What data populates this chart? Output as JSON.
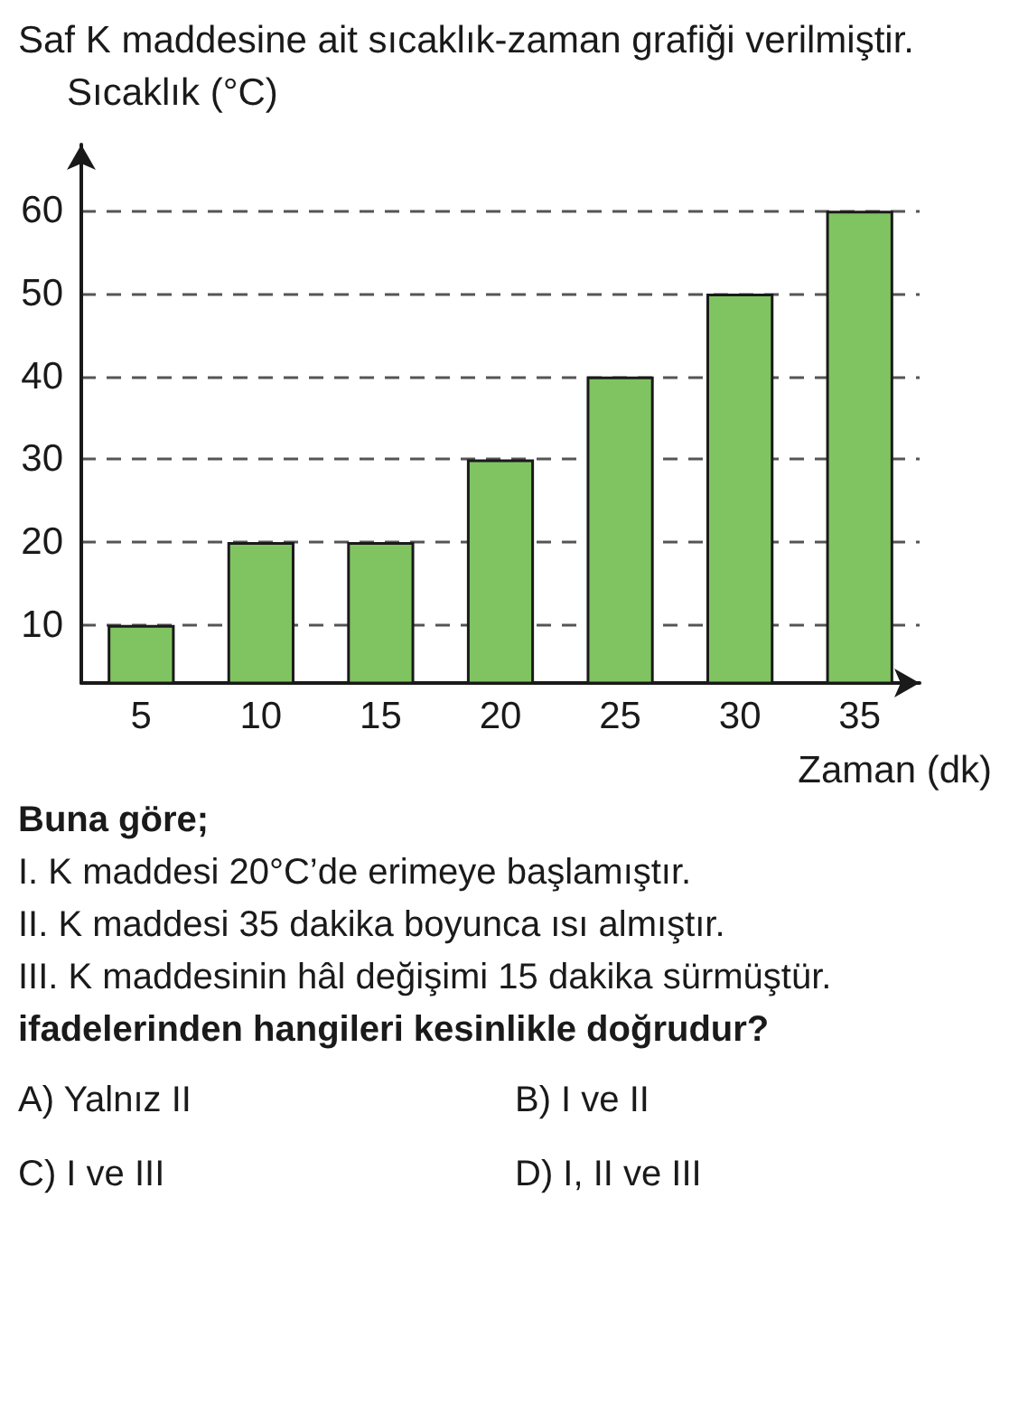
{
  "chart_data": {
    "type": "bar",
    "title": "Saf K maddesine ait sıcaklık-zaman grafiği verilmiştir.",
    "ylabel": "Sıcaklık (°C)",
    "xlabel": "Zaman (dk)",
    "categories": [
      "5",
      "10",
      "15",
      "20",
      "25",
      "30",
      "35"
    ],
    "values": [
      10,
      20,
      20,
      30,
      40,
      50,
      60
    ],
    "color": "#80c462",
    "ylim": [
      3,
      68
    ],
    "yticks": [
      10,
      20,
      30,
      40,
      50,
      60
    ],
    "grid": "y",
    "annotations": [
      "Buna göre;",
      "I. K maddesi 20°C’de erimeye başlamıştır.",
      "II. K maddesi 35 dakika boyunca ısı almıştır.",
      "III. K maddesinin hâl değişimi 15 dakika sürmüştür.",
      "ifadelerinden hangileri kesinlikle doğrudur?",
      "A) Yalnız II",
      "B) I ve II",
      "C) I ve III",
      "D) I, II ve III"
    ]
  }
}
